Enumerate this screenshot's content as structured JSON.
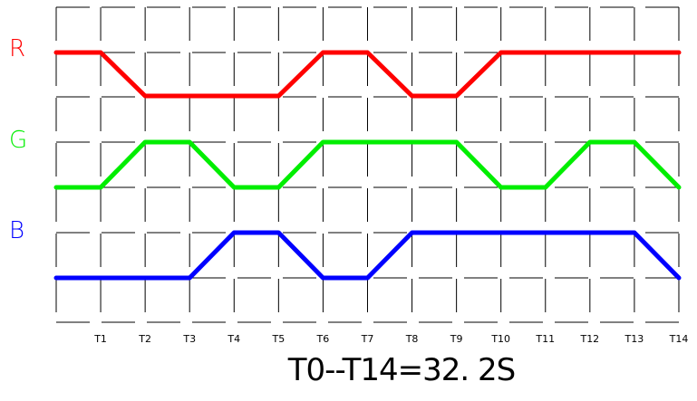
{
  "diagram": {
    "time_labels": [
      "T1",
      "T2",
      "T3",
      "T4",
      "T5",
      "T6",
      "T7",
      "T8",
      "T9",
      "T10",
      "T11",
      "T12",
      "T13",
      "T14"
    ],
    "caption": "T0--T14=32. 2S",
    "channels": [
      {
        "name": "R",
        "color": "#ff0000",
        "levels": [
          1,
          1,
          0,
          0,
          0,
          0,
          1,
          1,
          0,
          0,
          1,
          1,
          1,
          1,
          1
        ]
      },
      {
        "name": "G",
        "color": "#00ee00",
        "levels": [
          0,
          0,
          1,
          1,
          0,
          0,
          1,
          1,
          1,
          1,
          0,
          0,
          1,
          1,
          0
        ]
      },
      {
        "name": "B",
        "color": "#0000ff",
        "levels": [
          0,
          0,
          0,
          0,
          1,
          1,
          0,
          0,
          1,
          1,
          1,
          1,
          1,
          1,
          0
        ]
      }
    ]
  }
}
